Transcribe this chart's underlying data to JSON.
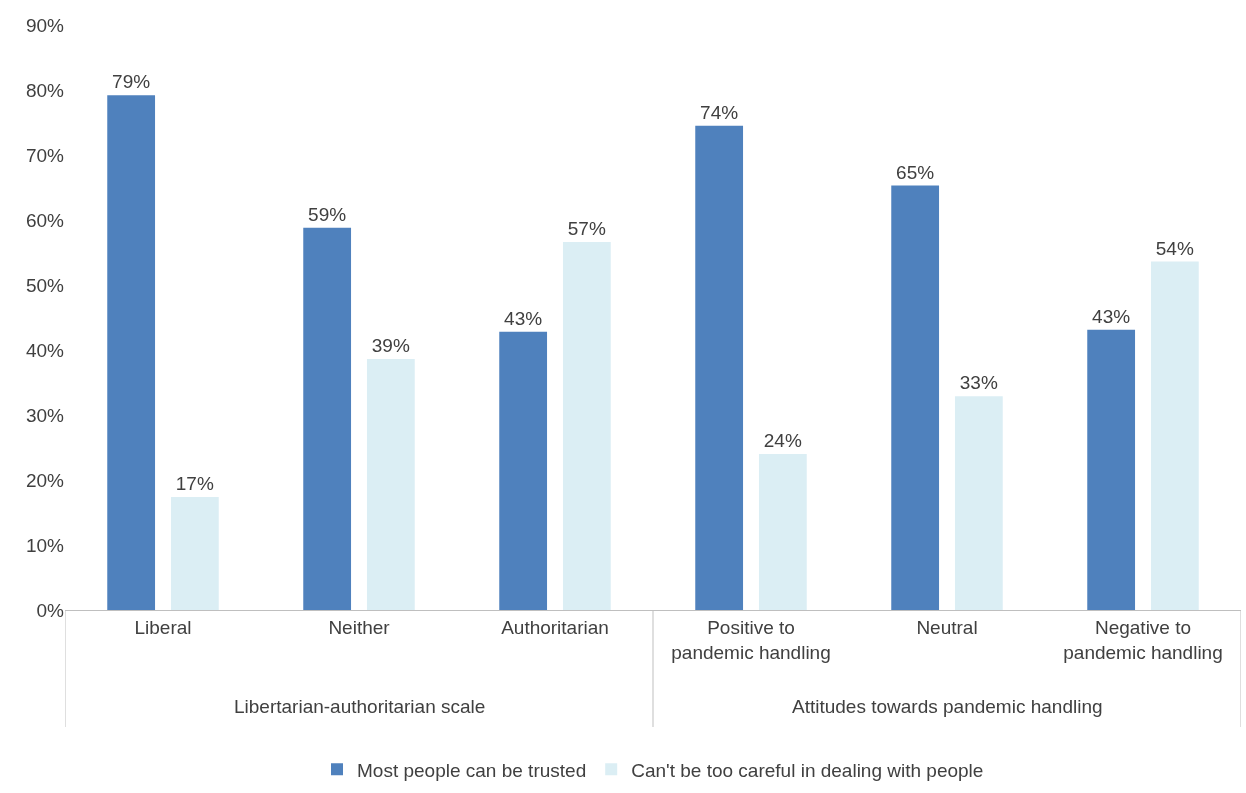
{
  "chart_data": {
    "type": "bar",
    "categories": [
      "Liberal",
      "Neither",
      "Authoritarian",
      "Positive to\npandemic handling",
      "Neutral",
      "Negative to\npandemic handling"
    ],
    "series": [
      {
        "name": "Most people can be trusted",
        "color": "#4f81bd",
        "values": [
          79.2,
          58.8,
          42.8,
          74.5,
          65.3,
          43.1
        ],
        "value_labels": [
          "79%",
          "59%",
          "43%",
          "74%",
          "65%",
          "43%"
        ]
      },
      {
        "name": "Can't be too careful in dealing with people",
        "color": "#dbeef4",
        "values": [
          17.4,
          38.6,
          56.6,
          24.0,
          32.9,
          53.6
        ],
        "value_labels": [
          "17%",
          "39%",
          "57%",
          "24%",
          "33%",
          "54%"
        ]
      }
    ],
    "annotations": [
      "Libertarian-authoritarian scale",
      "Attitudes towards pandemic handling"
    ],
    "ylim": [
      0,
      90
    ],
    "yticks": [
      {
        "value": 0,
        "label": "0%"
      },
      {
        "value": 10,
        "label": "10%"
      },
      {
        "value": 20,
        "label": "20%"
      },
      {
        "value": 30,
        "label": "30%"
      },
      {
        "value": 40,
        "label": "40%"
      },
      {
        "value": 50,
        "label": "50%"
      },
      {
        "value": 60,
        "label": "60%"
      },
      {
        "value": 70,
        "label": "70%"
      },
      {
        "value": 80,
        "label": "80%"
      },
      {
        "value": 90,
        "label": "90%"
      }
    ],
    "grid": false,
    "legend": "bottom"
  }
}
